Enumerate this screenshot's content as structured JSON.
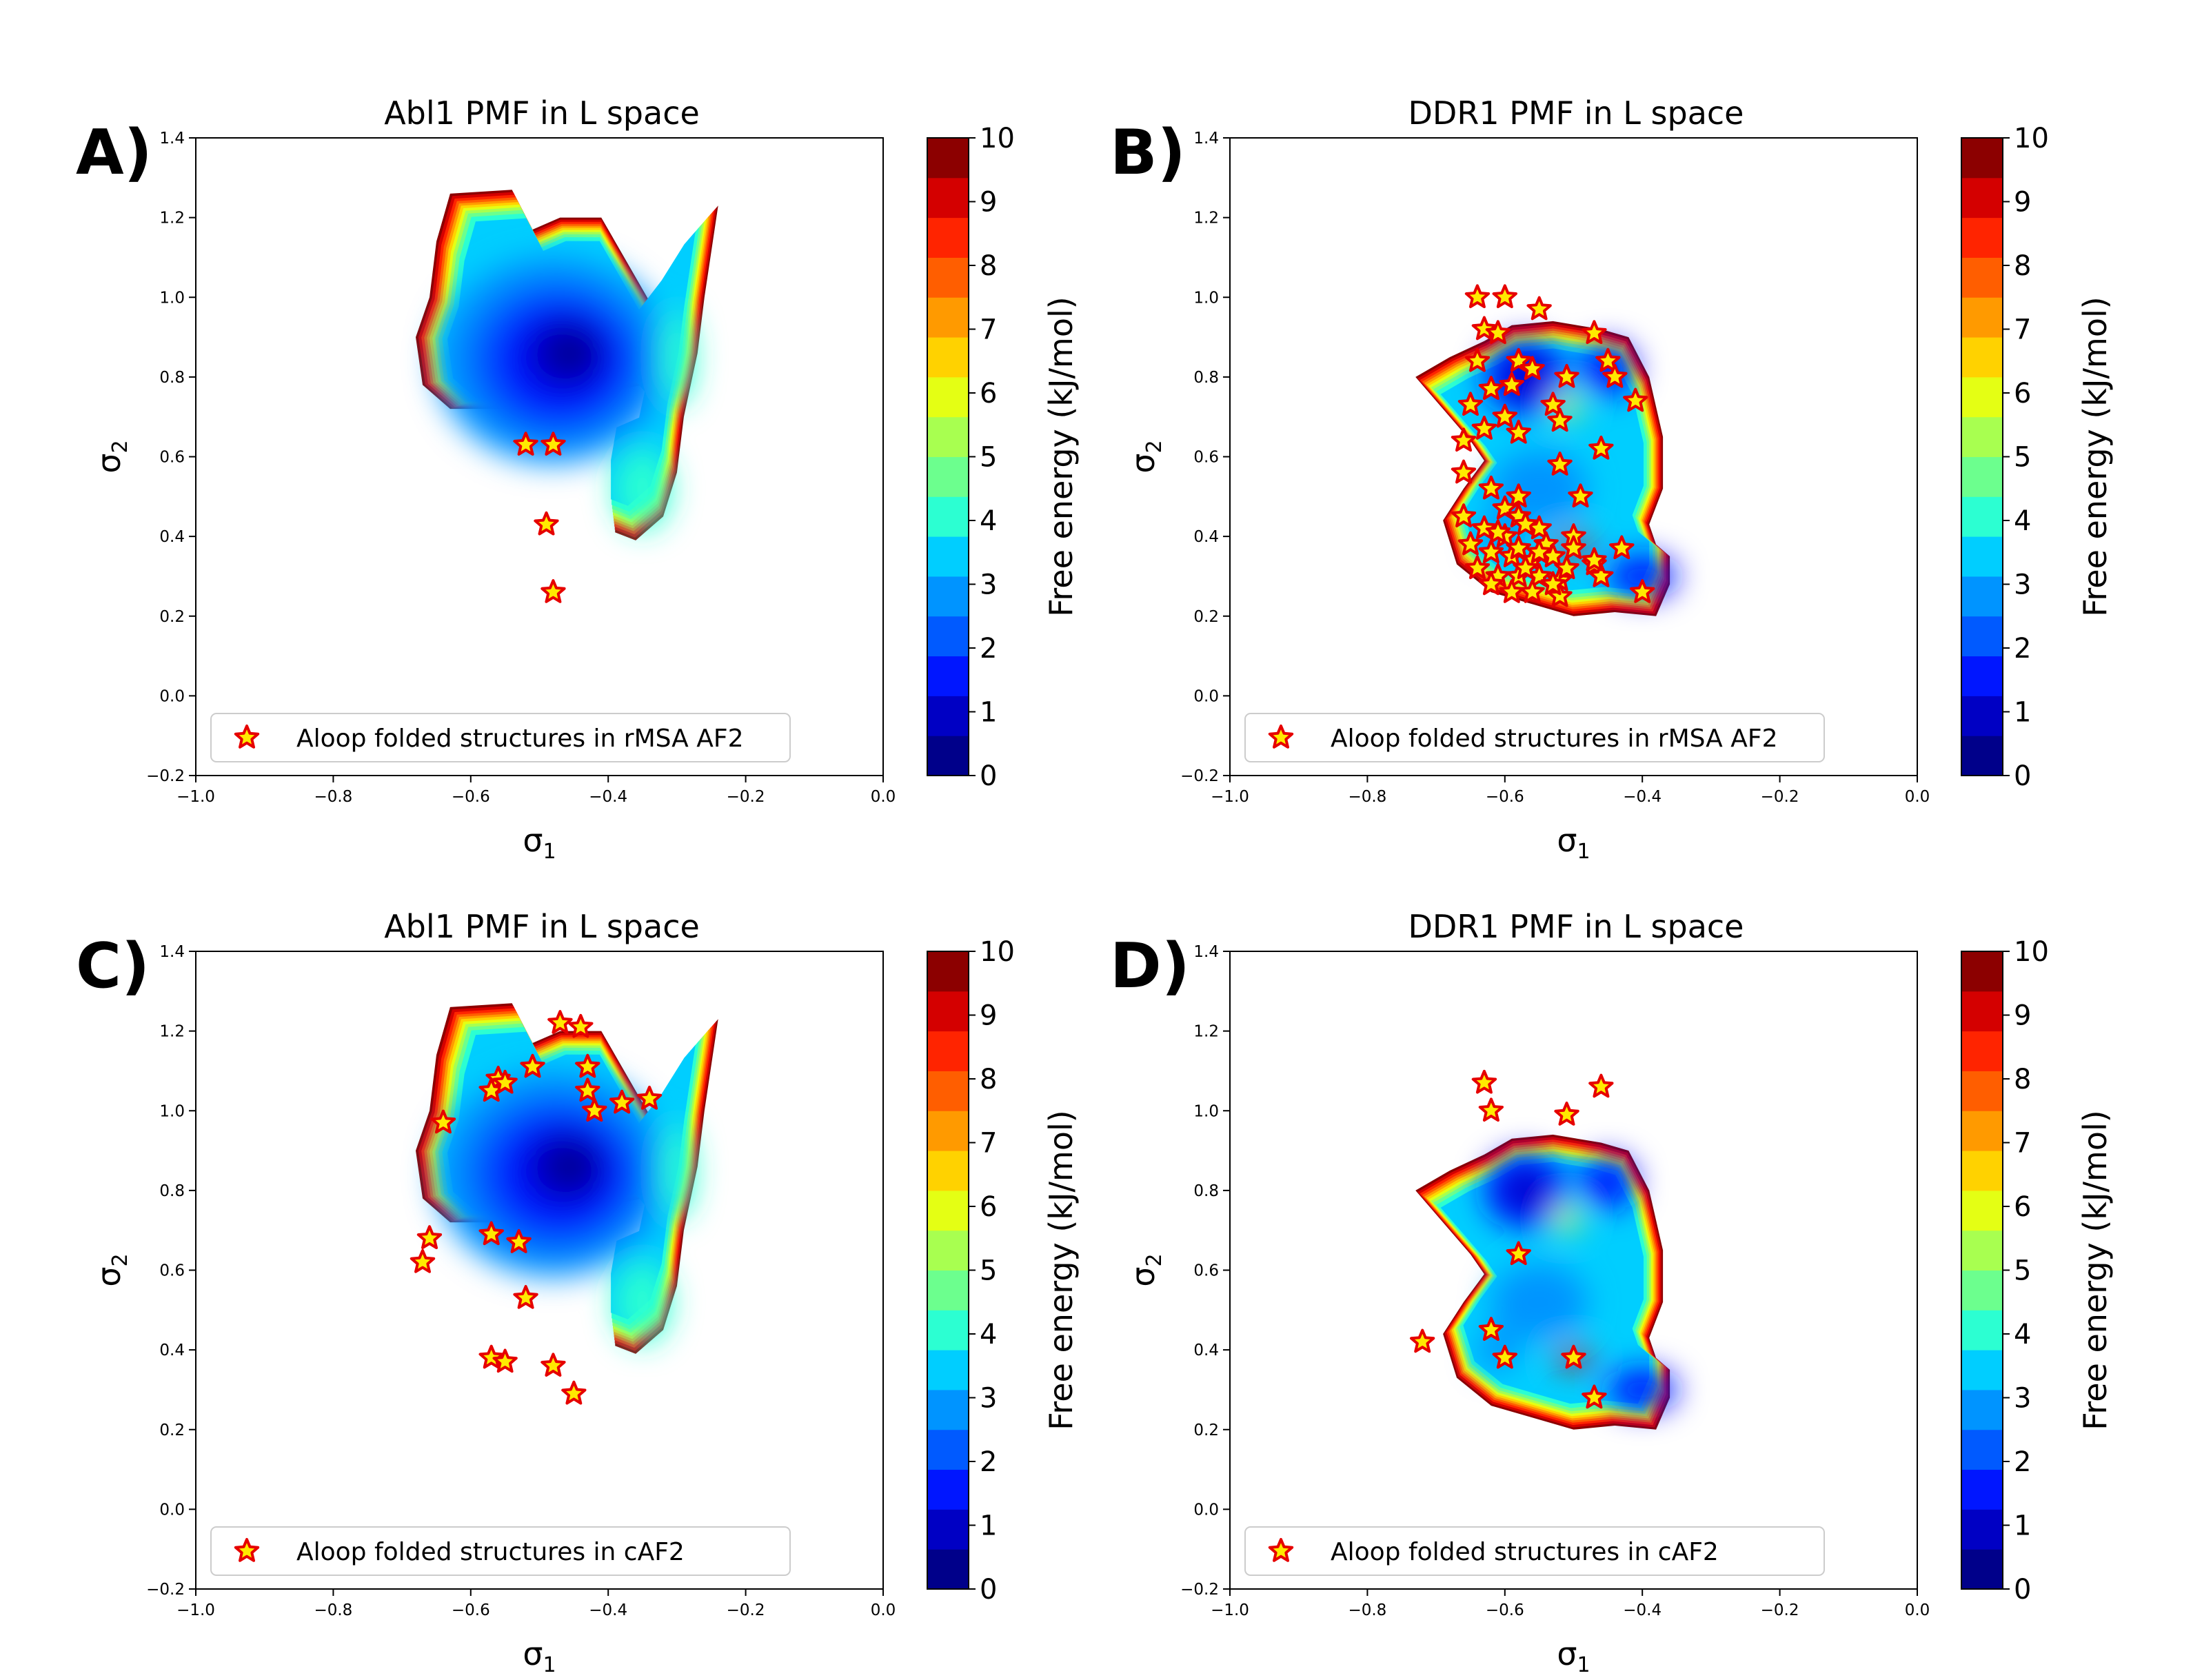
{
  "colorscale": {
    "levels": [
      0,
      1,
      2,
      3,
      4,
      5,
      6,
      7,
      8,
      9,
      10
    ],
    "colors": [
      "#00008f",
      "#0000cf",
      "#0e3cff",
      "#1a78ff",
      "#1fb4ff",
      "#28e4ff",
      "#3cf0d2",
      "#7dfa8a",
      "#c8fa2e",
      "#ffe600",
      "#ffb000",
      "#ff7a00",
      "#ff3c00",
      "#e80000",
      "#a00000"
    ],
    "bands": [
      "#00008a",
      "#0000c4",
      "#0016ff",
      "#005aff",
      "#0094ff",
      "#00ceff",
      "#2cffd2",
      "#6cff8e",
      "#a8ff50",
      "#e4ff14",
      "#ffd200",
      "#ff9a00",
      "#ff5e00",
      "#ff2400",
      "#d40000",
      "#8c0000"
    ]
  },
  "colorbar": {
    "label": "Free energy (kJ/mol)",
    "ticks": [
      "0",
      "1",
      "2",
      "3",
      "4",
      "5",
      "6",
      "7",
      "8",
      "9",
      "10"
    ]
  },
  "panels": [
    {
      "letter": "A)",
      "title": "Abl1 PMF in L space",
      "legend": "Aloop folded structures in rMSA AF2",
      "xlabel": "σ",
      "xlabel_sub": "1",
      "ylabel": "σ",
      "ylabel_sub": "2",
      "x_ticks": [
        "−1.0",
        "−0.8",
        "−0.6",
        "−0.4",
        "−0.2",
        "0.0"
      ],
      "y_ticks": [
        "−0.2",
        "0.0",
        "0.2",
        "0.4",
        "0.6",
        "0.8",
        "1.0",
        "1.2",
        "1.4"
      ]
    },
    {
      "letter": "B)",
      "title": "DDR1 PMF in L space",
      "legend": "Aloop folded structures in rMSA AF2",
      "xlabel": "σ",
      "xlabel_sub": "1",
      "ylabel": "σ",
      "ylabel_sub": "2",
      "x_ticks": [
        "−1.0",
        "−0.8",
        "−0.6",
        "−0.4",
        "−0.2",
        "0.0"
      ],
      "y_ticks": [
        "−0.2",
        "0.0",
        "0.2",
        "0.4",
        "0.6",
        "0.8",
        "1.0",
        "1.2",
        "1.4"
      ]
    },
    {
      "letter": "C)",
      "title": "Abl1 PMF in L space",
      "legend": "Aloop folded structures in cAF2",
      "xlabel": "σ",
      "xlabel_sub": "1",
      "ylabel": "σ",
      "ylabel_sub": "2",
      "x_ticks": [
        "−1.0",
        "−0.8",
        "−0.6",
        "−0.4",
        "−0.2",
        "0.0"
      ],
      "y_ticks": [
        "−0.2",
        "0.0",
        "0.2",
        "0.4",
        "0.6",
        "0.8",
        "1.0",
        "1.2",
        "1.4"
      ]
    },
    {
      "letter": "D)",
      "title": "DDR1 PMF in L space",
      "legend": "Aloop folded structures in cAF2",
      "xlabel": "σ",
      "xlabel_sub": "1",
      "ylabel": "σ",
      "ylabel_sub": "2",
      "x_ticks": [
        "−1.0",
        "−0.8",
        "−0.6",
        "−0.4",
        "−0.2",
        "0.0"
      ],
      "y_ticks": [
        "−0.2",
        "0.0",
        "0.2",
        "0.4",
        "0.6",
        "0.8",
        "1.0",
        "1.2",
        "1.4"
      ]
    }
  ],
  "chart_data": [
    {
      "type": "heatmap",
      "title": "Abl1 PMF in L space",
      "xlabel": "σ1",
      "ylabel": "σ2",
      "xlim": [
        -1.0,
        0.0
      ],
      "ylim": [
        -0.2,
        1.4
      ],
      "colorbar_label": "Free energy (kJ/mol)",
      "zlim": [
        0,
        10
      ],
      "region_outline": [
        [
          -0.63,
          1.26
        ],
        [
          -0.54,
          1.27
        ],
        [
          -0.51,
          1.17
        ],
        [
          -0.47,
          1.2
        ],
        [
          -0.41,
          1.2
        ],
        [
          -0.37,
          1.08
        ],
        [
          -0.34,
          0.99
        ],
        [
          -0.3,
          1.08
        ],
        [
          -0.26,
          1.19
        ],
        [
          -0.24,
          1.23
        ],
        [
          -0.26,
          1.0
        ],
        [
          -0.27,
          0.86
        ],
        [
          -0.29,
          0.7
        ],
        [
          -0.3,
          0.56
        ],
        [
          -0.32,
          0.45
        ],
        [
          -0.36,
          0.39
        ],
        [
          -0.39,
          0.41
        ],
        [
          -0.39,
          0.53
        ],
        [
          -0.38,
          0.63
        ],
        [
          -0.34,
          0.66
        ],
        [
          -0.33,
          0.74
        ],
        [
          -0.35,
          0.78
        ],
        [
          -0.38,
          0.77
        ],
        [
          -0.44,
          0.74
        ],
        [
          -0.55,
          0.72
        ],
        [
          -0.63,
          0.72
        ],
        [
          -0.67,
          0.78
        ],
        [
          -0.68,
          0.9
        ],
        [
          -0.66,
          1.0
        ],
        [
          -0.65,
          1.14
        ]
      ],
      "minimum": [
        -0.46,
        0.86
      ],
      "series": [
        {
          "name": "Aloop folded structures in rMSA AF2",
          "x": [
            -0.52,
            -0.48,
            -0.49,
            -0.48
          ],
          "y": [
            0.63,
            0.63,
            0.43,
            0.26
          ]
        }
      ]
    },
    {
      "type": "heatmap",
      "title": "DDR1 PMF in L space",
      "xlabel": "σ1",
      "ylabel": "σ2",
      "xlim": [
        -1.0,
        0.0
      ],
      "ylim": [
        -0.2,
        1.4
      ],
      "colorbar_label": "Free energy (kJ/mol)",
      "zlim": [
        0,
        10
      ],
      "region_outline": [
        [
          -0.59,
          0.93
        ],
        [
          -0.53,
          0.94
        ],
        [
          -0.46,
          0.92
        ],
        [
          -0.42,
          0.9
        ],
        [
          -0.39,
          0.8
        ],
        [
          -0.37,
          0.65
        ],
        [
          -0.37,
          0.52
        ],
        [
          -0.39,
          0.43
        ],
        [
          -0.38,
          0.38
        ],
        [
          -0.36,
          0.35
        ],
        [
          -0.36,
          0.28
        ],
        [
          -0.38,
          0.2
        ],
        [
          -0.44,
          0.21
        ],
        [
          -0.5,
          0.2
        ],
        [
          -0.56,
          0.23
        ],
        [
          -0.62,
          0.26
        ],
        [
          -0.67,
          0.33
        ],
        [
          -0.69,
          0.44
        ],
        [
          -0.66,
          0.52
        ],
        [
          -0.63,
          0.59
        ],
        [
          -0.65,
          0.64
        ],
        [
          -0.7,
          0.74
        ],
        [
          -0.73,
          0.8
        ],
        [
          -0.68,
          0.85
        ],
        [
          -0.63,
          0.89
        ]
      ],
      "minimum": [
        -0.57,
        0.8
      ],
      "series": [
        {
          "name": "Aloop folded structures in rMSA AF2",
          "x": [
            -0.64,
            -0.6,
            -0.55,
            -0.63,
            -0.61,
            -0.47,
            -0.64,
            -0.58,
            -0.56,
            -0.51,
            -0.45,
            -0.41,
            -0.65,
            -0.62,
            -0.59,
            -0.53,
            -0.6,
            -0.66,
            -0.63,
            -0.58,
            -0.52,
            -0.46,
            -0.66,
            -0.62,
            -0.58,
            -0.52,
            -0.49,
            -0.6,
            -0.58,
            -0.55,
            -0.5,
            -0.66,
            -0.63,
            -0.6,
            -0.57,
            -0.54,
            -0.5,
            -0.65,
            -0.62,
            -0.59,
            -0.56,
            -0.53,
            -0.47,
            -0.43,
            -0.64,
            -0.61,
            -0.58,
            -0.55,
            -0.52,
            -0.46,
            -0.62,
            -0.59,
            -0.56,
            -0.52,
            -0.4,
            -0.61,
            -0.58,
            -0.55,
            -0.51,
            -0.47,
            -0.44,
            -0.57,
            -0.53
          ],
          "y": [
            1.0,
            1.0,
            0.97,
            0.92,
            0.91,
            0.91,
            0.84,
            0.84,
            0.82,
            0.8,
            0.84,
            0.74,
            0.73,
            0.77,
            0.78,
            0.73,
            0.7,
            0.64,
            0.67,
            0.66,
            0.69,
            0.62,
            0.56,
            0.52,
            0.5,
            0.58,
            0.5,
            0.47,
            0.45,
            0.42,
            0.4,
            0.45,
            0.42,
            0.4,
            0.43,
            0.38,
            0.37,
            0.38,
            0.36,
            0.35,
            0.34,
            0.35,
            0.33,
            0.37,
            0.32,
            0.3,
            0.3,
            0.3,
            0.29,
            0.3,
            0.28,
            0.26,
            0.26,
            0.25,
            0.26,
            0.41,
            0.37,
            0.36,
            0.32,
            0.34,
            0.8,
            0.32,
            0.28
          ]
        }
      ]
    },
    {
      "type": "heatmap",
      "title": "Abl1 PMF in L space",
      "xlabel": "σ1",
      "ylabel": "σ2",
      "xlim": [
        -1.0,
        0.0
      ],
      "ylim": [
        -0.2,
        1.4
      ],
      "colorbar_label": "Free energy (kJ/mol)",
      "zlim": [
        0,
        10
      ],
      "region_outline": [
        [
          -0.63,
          1.26
        ],
        [
          -0.54,
          1.27
        ],
        [
          -0.51,
          1.17
        ],
        [
          -0.47,
          1.2
        ],
        [
          -0.41,
          1.2
        ],
        [
          -0.37,
          1.08
        ],
        [
          -0.34,
          0.99
        ],
        [
          -0.3,
          1.08
        ],
        [
          -0.26,
          1.19
        ],
        [
          -0.24,
          1.23
        ],
        [
          -0.26,
          1.0
        ],
        [
          -0.27,
          0.86
        ],
        [
          -0.29,
          0.7
        ],
        [
          -0.3,
          0.56
        ],
        [
          -0.32,
          0.45
        ],
        [
          -0.36,
          0.39
        ],
        [
          -0.39,
          0.41
        ],
        [
          -0.39,
          0.53
        ],
        [
          -0.38,
          0.63
        ],
        [
          -0.34,
          0.66
        ],
        [
          -0.33,
          0.74
        ],
        [
          -0.35,
          0.78
        ],
        [
          -0.38,
          0.77
        ],
        [
          -0.44,
          0.74
        ],
        [
          -0.55,
          0.72
        ],
        [
          -0.63,
          0.72
        ],
        [
          -0.67,
          0.78
        ],
        [
          -0.68,
          0.9
        ],
        [
          -0.66,
          1.0
        ],
        [
          -0.65,
          1.14
        ]
      ],
      "minimum": [
        -0.46,
        0.86
      ],
      "series": [
        {
          "name": "Aloop folded structures in cAF2",
          "x": [
            -0.47,
            -0.44,
            -0.43,
            -0.43,
            -0.42,
            -0.38,
            -0.34,
            -0.51,
            -0.56,
            -0.57,
            -0.55,
            -0.64,
            -0.66,
            -0.67,
            -0.57,
            -0.53,
            -0.52,
            -0.57,
            -0.55,
            -0.48,
            -0.45
          ],
          "y": [
            1.22,
            1.21,
            1.11,
            1.05,
            1.0,
            1.02,
            1.03,
            1.11,
            1.08,
            1.05,
            1.07,
            0.97,
            0.68,
            0.62,
            0.69,
            0.67,
            0.53,
            0.38,
            0.37,
            0.36,
            0.29
          ]
        }
      ]
    },
    {
      "type": "heatmap",
      "title": "DDR1 PMF in L space",
      "xlabel": "σ1",
      "ylabel": "σ2",
      "xlim": [
        -1.0,
        0.0
      ],
      "ylim": [
        -0.2,
        1.4
      ],
      "colorbar_label": "Free energy (kJ/mol)",
      "zlim": [
        0,
        10
      ],
      "region_outline": [
        [
          -0.59,
          0.93
        ],
        [
          -0.53,
          0.94
        ],
        [
          -0.46,
          0.92
        ],
        [
          -0.42,
          0.9
        ],
        [
          -0.39,
          0.8
        ],
        [
          -0.37,
          0.65
        ],
        [
          -0.37,
          0.52
        ],
        [
          -0.39,
          0.43
        ],
        [
          -0.38,
          0.38
        ],
        [
          -0.36,
          0.35
        ],
        [
          -0.36,
          0.28
        ],
        [
          -0.38,
          0.2
        ],
        [
          -0.44,
          0.21
        ],
        [
          -0.5,
          0.2
        ],
        [
          -0.56,
          0.23
        ],
        [
          -0.62,
          0.26
        ],
        [
          -0.67,
          0.33
        ],
        [
          -0.69,
          0.44
        ],
        [
          -0.66,
          0.52
        ],
        [
          -0.63,
          0.59
        ],
        [
          -0.65,
          0.64
        ],
        [
          -0.7,
          0.74
        ],
        [
          -0.73,
          0.8
        ],
        [
          -0.68,
          0.85
        ],
        [
          -0.63,
          0.89
        ]
      ],
      "minimum": [
        -0.57,
        0.8
      ],
      "series": [
        {
          "name": "Aloop folded structures in cAF2",
          "x": [
            -0.63,
            -0.62,
            -0.51,
            -0.46,
            -0.58,
            -0.72,
            -0.62,
            -0.6,
            -0.5,
            -0.47
          ],
          "y": [
            1.07,
            1.0,
            0.99,
            1.06,
            0.64,
            0.42,
            0.45,
            0.38,
            0.38,
            0.28
          ]
        }
      ]
    }
  ]
}
